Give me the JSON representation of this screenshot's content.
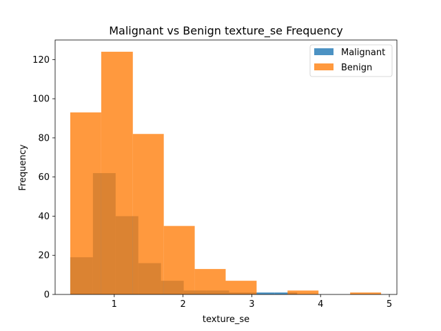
{
  "chart_data": {
    "type": "bar",
    "subtype": "overlaid-histogram",
    "title": "Malignant vs Benign texture_se Frequency",
    "xlabel": "texture_se",
    "ylabel": "Frequency",
    "xlim": [
      0.14,
      5.11
    ],
    "ylim": [
      0,
      130
    ],
    "xticks": [
      1,
      2,
      3,
      4,
      5
    ],
    "yticks": [
      0,
      20,
      40,
      60,
      80,
      100,
      120
    ],
    "legend_position": "upper right",
    "grid": false,
    "series": [
      {
        "name": "Malignant",
        "color": "#1f77b4",
        "alpha": 0.8,
        "bins": [
          {
            "x0": 0.36,
            "x1": 0.69,
            "count": 19
          },
          {
            "x0": 0.69,
            "x1": 1.02,
            "count": 62
          },
          {
            "x0": 1.02,
            "x1": 1.35,
            "count": 40
          },
          {
            "x0": 1.35,
            "x1": 1.68,
            "count": 16
          },
          {
            "x0": 1.68,
            "x1": 2.01,
            "count": 7
          },
          {
            "x0": 2.01,
            "x1": 2.34,
            "count": 2
          },
          {
            "x0": 2.34,
            "x1": 2.67,
            "count": 2
          },
          {
            "x0": 2.67,
            "x1": 3.0,
            "count": 1
          },
          {
            "x0": 3.0,
            "x1": 3.33,
            "count": 1
          },
          {
            "x0": 3.33,
            "x1": 3.66,
            "count": 1
          }
        ]
      },
      {
        "name": "Benign",
        "color": "#ff7f0e",
        "alpha": 0.8,
        "bins": [
          {
            "x0": 0.36,
            "x1": 0.81,
            "count": 93
          },
          {
            "x0": 0.81,
            "x1": 1.27,
            "count": 124
          },
          {
            "x0": 1.27,
            "x1": 1.72,
            "count": 82
          },
          {
            "x0": 1.72,
            "x1": 2.17,
            "count": 35
          },
          {
            "x0": 2.17,
            "x1": 2.62,
            "count": 13
          },
          {
            "x0": 2.62,
            "x1": 3.07,
            "count": 7
          },
          {
            "x0": 3.07,
            "x1": 3.52,
            "count": 0
          },
          {
            "x0": 3.52,
            "x1": 3.97,
            "count": 2
          },
          {
            "x0": 3.97,
            "x1": 4.43,
            "count": 0
          },
          {
            "x0": 4.43,
            "x1": 4.88,
            "count": 1
          }
        ]
      }
    ]
  }
}
